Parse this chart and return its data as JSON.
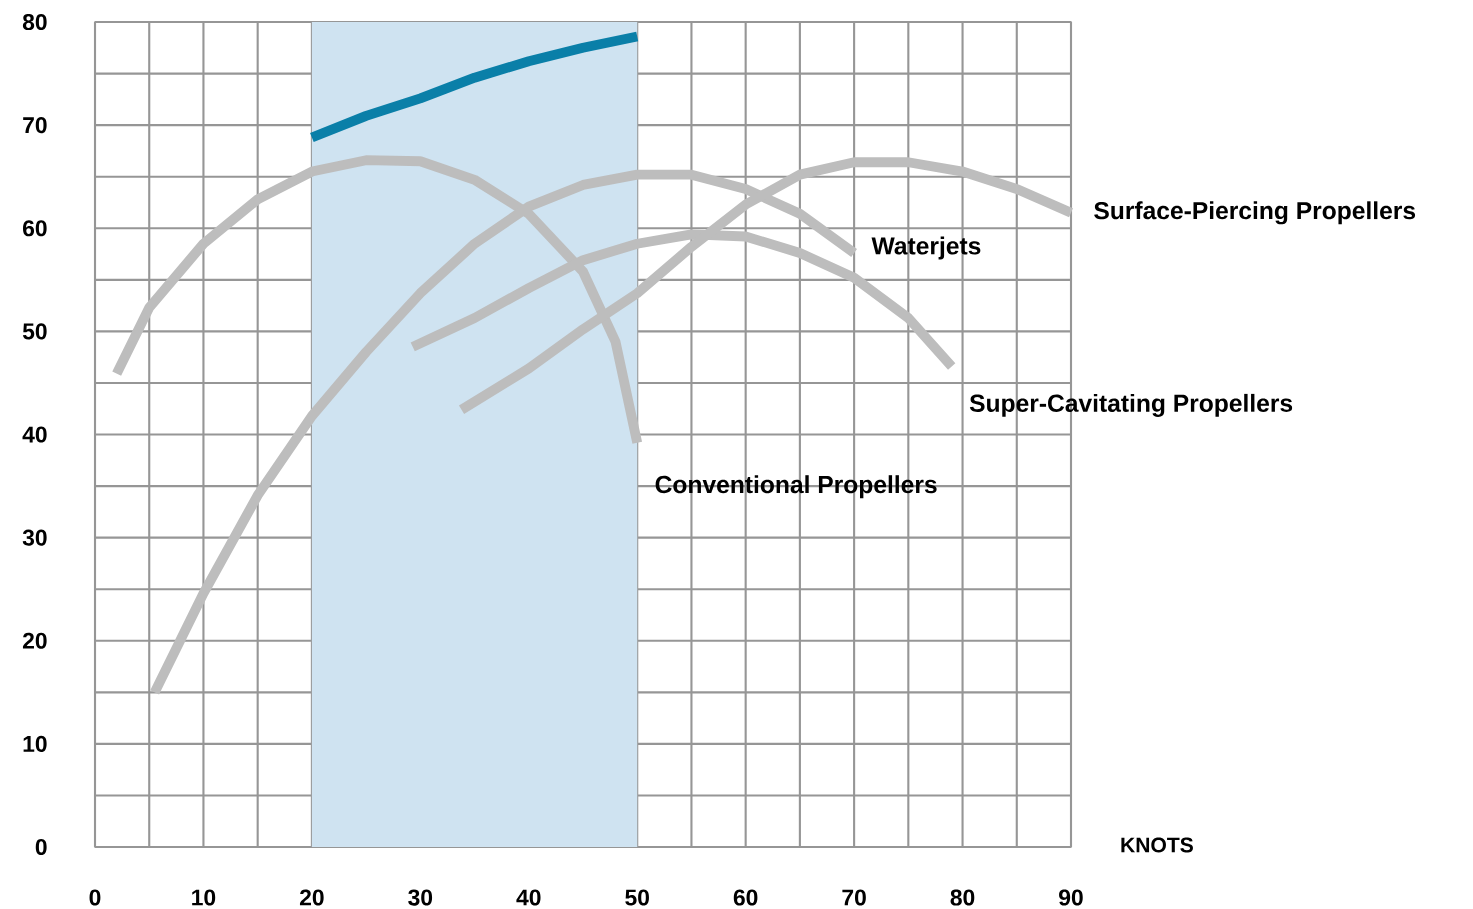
{
  "chart_data": {
    "type": "line",
    "xlabel": "KNOTS",
    "xlim": [
      0,
      90
    ],
    "ylim": [
      0,
      80
    ],
    "xticks": [
      0,
      {
        "value": 5,
        "label": null
      },
      10,
      {
        "value": 15,
        "label": null
      },
      20,
      {
        "value": 25,
        "label": null
      },
      30,
      {
        "value": 35,
        "label": null
      },
      40,
      {
        "value": 45,
        "label": null
      },
      50,
      {
        "value": 55,
        "label": null
      },
      60,
      {
        "value": 65,
        "label": null
      },
      70,
      {
        "value": 75,
        "label": null
      },
      80,
      {
        "value": 85,
        "label": null
      },
      90
    ],
    "yticks": [
      0,
      {
        "value": 5,
        "label": null
      },
      10,
      {
        "value": 15,
        "label": null
      },
      20,
      {
        "value": 25,
        "label": null
      },
      30,
      {
        "value": 35,
        "label": null
      },
      40,
      {
        "value": 45,
        "label": null
      },
      50,
      {
        "value": 55,
        "label": null
      },
      60,
      {
        "value": 65,
        "label": null
      },
      70,
      {
        "value": 75,
        "label": null
      },
      80
    ],
    "grid": true,
    "legend": false,
    "marker": "none",
    "line_style": "solid",
    "bands": [
      {
        "axis": "x",
        "from": 20,
        "to": 50,
        "color": "#cfe3f1"
      }
    ],
    "series": [
      {
        "name": "Conventional Propellers",
        "color": "#bdbdbd",
        "x": [
          2,
          5,
          10,
          15,
          20,
          25,
          30,
          35,
          40,
          45,
          48,
          50
        ],
        "values": [
          45.9,
          52.3,
          58.5,
          62.8,
          65.5,
          66.6,
          66.5,
          64.7,
          61.4,
          55.8,
          49,
          39.2
        ]
      },
      {
        "name": "Waterjets",
        "color": "#bdbdbd",
        "x": [
          5.5,
          10,
          15,
          20,
          25,
          30,
          35,
          40,
          45,
          50,
          55,
          60,
          65,
          70
        ],
        "values": [
          15,
          24.6,
          34.1,
          41.8,
          48,
          53.7,
          58.5,
          62.1,
          64.2,
          65.2,
          65.2,
          63.8,
          61.4,
          57.6
        ]
      },
      {
        "name": "Super-Cavitating Propellers",
        "color": "#bdbdbd",
        "x": [
          29.3,
          35,
          40,
          45,
          50,
          55,
          60,
          65,
          70,
          75,
          79
        ],
        "values": [
          48.5,
          51.3,
          54.2,
          56.9,
          58.5,
          59.4,
          59.2,
          57.6,
          55.2,
          51.3,
          46.6
        ]
      },
      {
        "name": "Surface-Piercing Propellers",
        "color": "#bdbdbd",
        "x": [
          33.8,
          40,
          45,
          50,
          55,
          60,
          65,
          70,
          75,
          80,
          85,
          90
        ],
        "values": [
          42.4,
          46.4,
          50.2,
          53.7,
          58.2,
          62.3,
          65.2,
          66.4,
          66.4,
          65.5,
          63.8,
          61.5
        ]
      },
      {
        "color": "#0a7fa8",
        "x": [
          20,
          25,
          30,
          35,
          40,
          45,
          50
        ],
        "values": [
          68.8,
          70.9,
          72.6,
          74.6,
          76.2,
          77.5,
          78.6
        ]
      }
    ]
  }
}
